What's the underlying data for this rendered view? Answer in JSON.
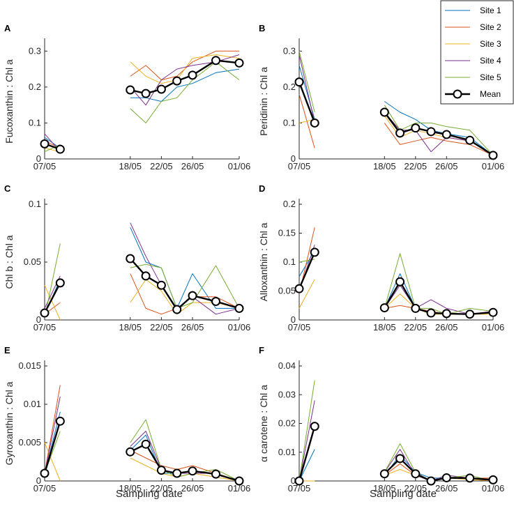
{
  "chart_data": [
    {
      "type": "line",
      "panel": "A",
      "ylabel": "Fucoxanthin : Chl a",
      "ylim": [
        0,
        0.32
      ],
      "yticks": [
        0,
        0.1,
        0.2,
        0.3
      ],
      "ytick_labels": [
        "0",
        "0.1",
        "0.2",
        "0.3"
      ],
      "x": [
        0,
        2,
        11,
        13,
        15,
        17,
        19,
        22,
        25
      ],
      "xticks": [
        0,
        11,
        15,
        19,
        25
      ],
      "xtick_labels": [
        "07/05",
        "18/05",
        "22/05",
        "26/05",
        "01/06"
      ],
      "series": [
        {
          "name": "Site 1",
          "values": [
            0.06,
            0.03,
            0.17,
            0.17,
            0.16,
            0.2,
            0.21,
            0.24,
            0.25
          ]
        },
        {
          "name": "Site 2",
          "values": [
            0.05,
            0.03,
            0.23,
            0.26,
            0.22,
            0.23,
            0.27,
            0.3,
            0.3
          ]
        },
        {
          "name": "Site 3",
          "values": [
            0.03,
            0.02,
            0.27,
            0.23,
            0.21,
            0.22,
            0.28,
            0.29,
            0.28
          ]
        },
        {
          "name": "Site 4",
          "values": [
            0.07,
            0.02,
            0.2,
            0.15,
            0.22,
            0.25,
            0.26,
            0.27,
            0.29
          ]
        },
        {
          "name": "Site 5",
          "values": [
            0.02,
            0.04,
            0.14,
            0.1,
            0.16,
            0.17,
            0.22,
            0.27,
            0.22
          ]
        },
        {
          "name": "Mean",
          "values": [
            0.042,
            0.027,
            0.192,
            0.182,
            0.194,
            0.217,
            0.233,
            0.274,
            0.267
          ]
        }
      ]
    },
    {
      "type": "line",
      "panel": "B",
      "ylabel": "Peridinin : Chl a",
      "ylim": [
        0,
        0.32
      ],
      "yticks": [
        0,
        0.1,
        0.2,
        0.3
      ],
      "ytick_labels": [
        "0",
        "0.1",
        "0.2",
        "0.3"
      ],
      "x": [
        0,
        2,
        11,
        13,
        15,
        17,
        19,
        22,
        25
      ],
      "xticks": [
        0,
        11,
        15,
        19,
        25
      ],
      "xtick_labels": [
        "07/05",
        "18/05",
        "22/05",
        "26/05",
        "01/06"
      ],
      "series": [
        {
          "name": "Site 1",
          "values": [
            0.26,
            0.11,
            0.16,
            0.13,
            0.11,
            0.08,
            0.07,
            0.06,
            0.01
          ]
        },
        {
          "name": "Site 2",
          "values": [
            0.18,
            0.03,
            0.1,
            0.04,
            0.05,
            0.06,
            0.05,
            0.04,
            0.01
          ]
        },
        {
          "name": "Site 3",
          "values": [
            0.1,
            0.11,
            0.12,
            0.06,
            0.08,
            0.07,
            0.06,
            0.05,
            0.01
          ]
        },
        {
          "name": "Site 4",
          "values": [
            0.29,
            0.1,
            0.13,
            0.08,
            0.08,
            0.02,
            0.06,
            0.05,
            0.01
          ]
        },
        {
          "name": "Site 5",
          "values": [
            0.3,
            0.13,
            0.15,
            0.08,
            0.1,
            0.1,
            0.09,
            0.08,
            0.01
          ]
        },
        {
          "name": "Mean",
          "values": [
            0.214,
            0.1,
            0.13,
            0.072,
            0.086,
            0.076,
            0.068,
            0.052,
            0.01
          ]
        }
      ]
    },
    {
      "type": "line",
      "panel": "C",
      "ylabel": "Chl b : Chl a",
      "ylim": [
        0,
        0.1
      ],
      "yticks": [
        0,
        0.05,
        0.1
      ],
      "ytick_labels": [
        "0",
        "0.05",
        "0.1"
      ],
      "x": [
        0,
        2,
        11,
        13,
        15,
        17,
        19,
        22,
        25
      ],
      "xticks": [
        0,
        11,
        15,
        19,
        25
      ],
      "xtick_labels": [
        "07/05",
        "18/05",
        "22/05",
        "26/05",
        "01/06"
      ],
      "series": [
        {
          "name": "Site 1",
          "values": [
            0.005,
            0.035,
            0.08,
            0.05,
            0.045,
            0.01,
            0.04,
            0.01,
            0.01
          ]
        },
        {
          "name": "Site 2",
          "values": [
            0.005,
            0.015,
            0.04,
            0.01,
            0.005,
            0.01,
            0.02,
            0.02,
            0.01
          ]
        },
        {
          "name": "Site 3",
          "values": [
            0.03,
            0.0,
            0.015,
            0.035,
            0.025,
            0.005,
            0.015,
            0.015,
            0.01
          ]
        },
        {
          "name": "Site 4",
          "values": [
            0.01,
            0.038,
            0.084,
            0.055,
            0.03,
            0.01,
            0.02,
            0.005,
            0.01
          ]
        },
        {
          "name": "Site 5",
          "values": [
            0.002,
            0.066,
            0.045,
            0.048,
            0.045,
            0.01,
            0.015,
            0.047,
            0.01
          ]
        },
        {
          "name": "Mean",
          "values": [
            0.006,
            0.032,
            0.053,
            0.038,
            0.03,
            0.009,
            0.021,
            0.016,
            0.01
          ]
        }
      ]
    },
    {
      "type": "line",
      "panel": "D",
      "ylabel": "Alloxanthin : Chl a",
      "ylim": [
        0,
        0.2
      ],
      "yticks": [
        0,
        0.05,
        0.1,
        0.15,
        0.2
      ],
      "ytick_labels": [
        "0",
        "0.05",
        "0.1",
        "0.15",
        "0.2"
      ],
      "x": [
        0,
        2,
        11,
        13,
        15,
        17,
        19,
        22,
        25
      ],
      "xticks": [
        0,
        11,
        15,
        19,
        25
      ],
      "xtick_labels": [
        "07/05",
        "18/05",
        "22/05",
        "26/05",
        "01/06"
      ],
      "series": [
        {
          "name": "Site 1",
          "values": [
            0.075,
            0.12,
            0.02,
            0.08,
            0.02,
            0.015,
            0.01,
            0.01,
            0.015
          ]
        },
        {
          "name": "Site 2",
          "values": [
            0.045,
            0.16,
            0.02,
            0.025,
            0.02,
            0.015,
            0.01,
            0.01,
            0.015
          ]
        },
        {
          "name": "Site 3",
          "values": [
            0.02,
            0.07,
            0.02,
            0.045,
            0.02,
            0.01,
            0.01,
            0.01,
            0.01
          ]
        },
        {
          "name": "Site 4",
          "values": [
            0.05,
            0.13,
            0.02,
            0.06,
            0.02,
            0.035,
            0.02,
            0.01,
            0.015
          ]
        },
        {
          "name": "Site 5",
          "values": [
            0.1,
            0.105,
            0.02,
            0.115,
            0.02,
            0.02,
            0.01,
            0.02,
            0.015
          ]
        },
        {
          "name": "Mean",
          "values": [
            0.054,
            0.117,
            0.021,
            0.066,
            0.02,
            0.012,
            0.011,
            0.01,
            0.013
          ]
        }
      ]
    },
    {
      "type": "line",
      "panel": "E",
      "ylabel": "Gyroxanthin : Chl a",
      "ylim": [
        0,
        0.015
      ],
      "yticks": [
        0,
        0.005,
        0.01,
        0.015
      ],
      "ytick_labels": [
        "0",
        "0.005",
        "0.01",
        "0.015"
      ],
      "x": [
        0,
        2,
        11,
        13,
        15,
        17,
        19,
        22,
        25
      ],
      "xticks": [
        0,
        11,
        15,
        19,
        25
      ],
      "xtick_labels": [
        "07/05",
        "18/05",
        "22/05",
        "26/05",
        "01/06"
      ],
      "series": [
        {
          "name": "Site 1",
          "values": [
            0.001,
            0.009,
            0.004,
            0.006,
            0.001,
            0.001,
            0.001,
            0.001,
            0.0
          ]
        },
        {
          "name": "Site 2",
          "values": [
            0.001,
            0.0125,
            0.004,
            0.003,
            0.002,
            0.0015,
            0.002,
            0.001,
            0.0
          ]
        },
        {
          "name": "Site 3",
          "values": [
            0.005,
            0.0,
            0.003,
            0.002,
            0.001,
            0.0005,
            0.001,
            0.0005,
            0.0
          ]
        },
        {
          "name": "Site 4",
          "values": [
            0.001,
            0.011,
            0.0045,
            0.0065,
            0.0015,
            0.001,
            0.001,
            0.001,
            0.0
          ]
        },
        {
          "name": "Site 5",
          "values": [
            0.001,
            0.0065,
            0.005,
            0.008,
            0.0015,
            0.0005,
            0.001,
            0.0015,
            0.0
          ]
        },
        {
          "name": "Mean",
          "values": [
            0.001,
            0.0078,
            0.0038,
            0.0048,
            0.0014,
            0.001,
            0.0013,
            0.0009,
            0.0
          ]
        }
      ]
    },
    {
      "type": "line",
      "panel": "F",
      "ylabel": "α carotene : Chl a",
      "ylim": [
        0,
        0.04
      ],
      "yticks": [
        0,
        0.01,
        0.02,
        0.03,
        0.04
      ],
      "ytick_labels": [
        "0",
        "0.01",
        "0.02",
        "0.03",
        "0.04"
      ],
      "x": [
        0,
        2,
        11,
        13,
        15,
        17,
        19,
        22,
        25
      ],
      "xticks": [
        0,
        11,
        15,
        19,
        25
      ],
      "xtick_labels": [
        "07/05",
        "18/05",
        "22/05",
        "26/05",
        "01/06"
      ],
      "series": [
        {
          "name": "Site 1",
          "values": [
            0.0,
            0.011,
            0.002,
            0.009,
            0.003,
            0.001,
            0.001,
            0.001,
            0.0
          ]
        },
        {
          "name": "Site 2",
          "values": [
            0.0,
            0.0,
            0.002,
            0.006,
            0.002,
            0.0,
            0.001,
            0.001,
            0.001
          ]
        },
        {
          "name": "Site 3",
          "values": [
            0.0,
            0.0,
            0.002,
            0.004,
            0.002,
            0.0,
            0.001,
            0.0005,
            0.0
          ]
        },
        {
          "name": "Site 4",
          "values": [
            0.0,
            0.028,
            0.003,
            0.011,
            0.002,
            0.0,
            0.002,
            0.001,
            0.0
          ]
        },
        {
          "name": "Site 5",
          "values": [
            0.0,
            0.035,
            0.003,
            0.013,
            0.003,
            0.0,
            0.001,
            0.002,
            0.0
          ]
        },
        {
          "name": "Mean",
          "values": [
            0.0,
            0.019,
            0.0025,
            0.0078,
            0.0025,
            0.0,
            0.0011,
            0.001,
            0.0004
          ]
        }
      ]
    }
  ],
  "xaxis_title": "Sampling date",
  "legend": {
    "entries": [
      "Site 1",
      "Site 2",
      "Site 3",
      "Site 4",
      "Site 5",
      "Mean"
    ],
    "colors": [
      "#0072bd",
      "#d95319",
      "#edb120",
      "#7e2f8e",
      "#77ac30",
      "#000000"
    ]
  }
}
